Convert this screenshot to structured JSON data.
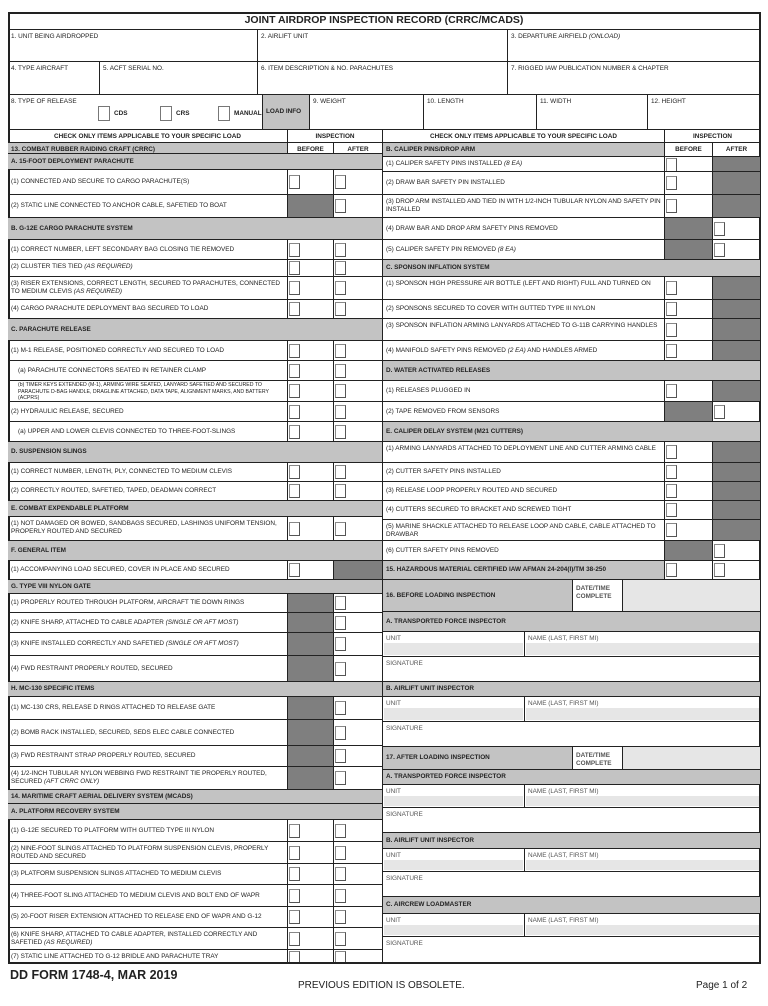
{
  "title": "JOINT AIRDROP INSPECTION RECORD (CRRC/MCADS)",
  "header_fields": {
    "f1": "1. UNIT BEING AIRDROPPED",
    "f2": "2. AIRLIFT UNIT",
    "f3": "3. DEPARTURE AIRFIELD",
    "f3_em": "(ONLOAD)",
    "f4": "4. TYPE AIRCRAFT",
    "f5": "5. ACFT SERIAL NO.",
    "f6": "6. ITEM DESCRIPTION & NO. PARACHUTES",
    "f7": "7. RIGGED IAW PUBLICATION NUMBER & CHAPTER",
    "f8": "8. TYPE OF RELEASE",
    "release_options": [
      "CDS",
      "CRS",
      "MANUAL"
    ],
    "load_info": "LOAD INFO",
    "f9": "9. WEIGHT",
    "f10": "10. LENGTH",
    "f11": "11. WIDTH",
    "f12": "12. HEIGHT"
  },
  "left_rows": [
    {
      "type": "colhead",
      "text": "CHECK ONLY ITEMS APPLICABLE TO YOUR SPECIFIC LOAD",
      "insp": "INSPECTION"
    },
    {
      "type": "sechead",
      "text": "13. COMBAT RUBBER RAIDING CRAFT (CRRC)",
      "before": "BEFORE",
      "after": "AFTER"
    },
    {
      "type": "head",
      "text": "A. 15-FOOT DEPLOYMENT PARACHUTE"
    },
    {
      "type": "item",
      "text": "(1) CONNECTED AND SECURE TO CARGO PARACHUTE(S)",
      "b": "box",
      "a": "box"
    },
    {
      "type": "item",
      "text": "(2) STATIC LINE CONNECTED TO ANCHOR CABLE, SAFETIED TO BOAT",
      "b": "shaded",
      "a": "box"
    },
    {
      "type": "head",
      "text": "B. G-12E CARGO PARACHUTE SYSTEM"
    },
    {
      "type": "item",
      "text": "(1) CORRECT NUMBER, LEFT SECONDARY BAG CLOSING TIE REMOVED",
      "b": "box",
      "a": "box"
    },
    {
      "type": "item",
      "text": "(2) CLUSTER TIES TIED ",
      "em": "(AS REQUIRED)",
      "b": "box",
      "a": "box"
    },
    {
      "type": "item",
      "text": "(3) RISER EXTENSIONS, CORRECT LENGTH, SECURED TO PARACHUTES, CONNECTED TO MEDIUM CLEVIS ",
      "em": "(AS REQUIRED)",
      "b": "box",
      "a": "box"
    },
    {
      "type": "item",
      "text": "(4) CARGO PARACHUTE DEPLOYMENT BAG SECURED TO LOAD",
      "b": "box",
      "a": "box"
    },
    {
      "type": "head",
      "text": "C. PARACHUTE RELEASE"
    },
    {
      "type": "item",
      "text": "(1) M-1 RELEASE, POSITIONED CORRECTLY AND SECURED  TO LOAD",
      "b": "box",
      "a": "box"
    },
    {
      "type": "item",
      "indent": true,
      "text": "(a) PARACHUTE CONNECTORS SEATED IN RETAINER CLAMP",
      "b": "box",
      "a": "box"
    },
    {
      "type": "item",
      "indent": true,
      "small": true,
      "text": "(b) TIMER KEYS EXTENDED (M-1), ARMING WIRE SEATED, LANYARD SAFETIED AND SECURED TO PARACHUTE D-BAG HANDLE, DRAGLINE ATTACHED, DATA TAPE, ALIGNMENT MARKS, AND BATTERY (ACPRS)",
      "b": "box",
      "a": "box"
    },
    {
      "type": "item",
      "text": "(2) HYDRAULIC RELEASE, SECURED",
      "b": "box",
      "a": "box"
    },
    {
      "type": "item",
      "indent": true,
      "text": "(a) UPPER AND LOWER CLEVIS CONNECTED TO THREE-FOOT-SLINGS",
      "b": "box",
      "a": "box"
    },
    {
      "type": "head",
      "text": "D. SUSPENSION SLINGS"
    },
    {
      "type": "item",
      "text": "(1) CORRECT NUMBER, LENGTH, PLY, CONNECTED TO MEDIUM CLEVIS",
      "b": "box",
      "a": "box"
    },
    {
      "type": "item",
      "text": "(2) CORRECTLY ROUTED, SAFETIED, TAPED, DEADMAN CORRECT",
      "b": "box",
      "a": "box"
    },
    {
      "type": "head",
      "text": "E. COMBAT EXPENDABLE PLATFORM"
    },
    {
      "type": "item",
      "text": "(1) NOT DAMAGED OR BOWED, SANDBAGS SECURED, LASHINGS UNIFORM TENSION, PROPERLY ROUTED AND SECURED",
      "b": "box",
      "a": "box"
    },
    {
      "type": "head",
      "text": "F. GENERAL ITEM"
    },
    {
      "type": "item",
      "text": "(1) ACCOMPANYING LOAD SECURED, COVER IN PLACE AND SECURED",
      "b": "box",
      "a": "shaded"
    },
    {
      "type": "head",
      "text": "G. TYPE VIII NYLON GATE"
    },
    {
      "type": "item",
      "text": "(1) PROPERLY ROUTED THROUGH PLATFORM, AIRCRAFT TIE DOWN RINGS",
      "b": "shaded",
      "a": "box"
    },
    {
      "type": "item",
      "text": "(2) KNIFE SHARP, ATTACHED TO CABLE ADAPTER ",
      "em": "(SINGLE OR AFT MOST)",
      "b": "shaded",
      "a": "box"
    },
    {
      "type": "item",
      "text": "(3) KNIFE INSTALLED CORRECTLY AND SAFETIED ",
      "em": "(SINGLE OR AFT MOST)",
      "b": "shaded",
      "a": "box"
    },
    {
      "type": "item",
      "text": "(4) FWD RESTRAINT PROPERLY ROUTED, SECURED",
      "b": "shaded",
      "a": "box"
    },
    {
      "type": "head",
      "text": "H. MC-130 SPECIFIC ITEMS"
    },
    {
      "type": "item",
      "text": "(1) MC-130 CRS, RELEASE D RINGS ATTACHED TO RELEASE GATE",
      "b": "shaded",
      "a": "box"
    },
    {
      "type": "item",
      "text": "(2) BOMB RACK INSTALLED, SECURED, SEDS ELEC CABLE CONNECTED",
      "b": "shaded",
      "a": "box"
    },
    {
      "type": "item",
      "text": "(3) FWD RESTRAINT STRAP PROPERLY ROUTED, SECURED",
      "b": "shaded",
      "a": "box"
    },
    {
      "type": "item",
      "text": "(4) 1/2-INCH TUBULAR NYLON WEBBING FWD RESTRAINT TIE PROPERLY ROUTED, SECURED ",
      "em": "(AFT CRRC ONLY)",
      "b": "shaded",
      "a": "box"
    },
    {
      "type": "head",
      "text": "14. MARITIME CRAFT AERIAL DELIVERY SYSTEM (MCADS)"
    },
    {
      "type": "head",
      "text": "A. PLATFORM RECOVERY SYSTEM"
    },
    {
      "type": "item",
      "text": "(1) G-12E SECURED TO PLATFORM WITH GUTTED TYPE III NYLON",
      "b": "box",
      "a": "box"
    },
    {
      "type": "item",
      "text": "(2) NINE-FOOT SLINGS ATTACHED TO PLATFORM SUSPENSION CLEVIS, PROPERLY ROUTED AND SECURED",
      "b": "box",
      "a": "box"
    },
    {
      "type": "item",
      "text": "(3) PLATFORM SUSPENSION SLINGS ATTACHED TO MEDIUM CLEVIS",
      "b": "box",
      "a": "box"
    },
    {
      "type": "item",
      "text": "(4) THREE-FOOT SLING ATTACHED TO MEDIUM CLEVIS AND BOLT END OF WAPR",
      "b": "box",
      "a": "box"
    },
    {
      "type": "item",
      "text": "(5) 20-FOOT RISER EXTENSION ATTACHED TO RELEASE END OF WAPR AND G-12",
      "b": "box",
      "a": "box"
    },
    {
      "type": "item",
      "text": "(6) KNIFE SHARP, ATTACHED TO CABLE ADAPTER, INSTALLED CORRECTLY AND SAFETIED ",
      "em": "(AS REQUIRED)",
      "b": "box",
      "a": "box"
    },
    {
      "type": "item",
      "text": "(7) STATIC LINE ATTACHED TO G-12 BRIDLE AND PARACHUTE TRAY",
      "b": "box",
      "a": "box"
    }
  ],
  "right_rows": [
    {
      "type": "colhead",
      "text": "CHECK ONLY ITEMS APPLICABLE TO YOUR SPECIFIC LOAD",
      "insp": "INSPECTION"
    },
    {
      "type": "sechead",
      "text": "B. CALIPER PINS/DROP ARM",
      "before": "BEFORE",
      "after": "AFTER"
    },
    {
      "type": "item",
      "text": "(1) CALIPER SAFETY PINS INSTALLED ",
      "em": "(8 EA)",
      "b": "box",
      "a": "shaded"
    },
    {
      "type": "item",
      "text": "(2) DRAW BAR SAFETY PIN INSTALLED",
      "b": "box",
      "a": "shaded"
    },
    {
      "type": "item",
      "text": "(3) DROP ARM INSTALLED AND TIED IN WITH 1/2-INCH TUBULAR NYLON AND SAFETY PIN INSTALLED",
      "b": "box",
      "a": "shaded"
    },
    {
      "type": "item",
      "text": "(4) DRAW BAR AND DROP ARM SAFETY PINS REMOVED",
      "b": "shaded",
      "a": "box"
    },
    {
      "type": "item",
      "text": "(5) CALIPER SAFETY PIN REMOVED ",
      "em": "(8 EA)",
      "b": "shaded",
      "a": "box"
    },
    {
      "type": "head",
      "text": "C. SPONSON INFLATION SYSTEM"
    },
    {
      "type": "item",
      "text": "(1) SPONSON HIGH PRESSURE AIR BOTTLE (LEFT AND RIGHT) FULL AND TURNED ON",
      "b": "box",
      "a": "shaded"
    },
    {
      "type": "item",
      "text": "(2) SPONSONS SECURED TO COVER WITH GUTTED TYPE III NYLON",
      "b": "box",
      "a": "shaded"
    },
    {
      "type": "item",
      "text": "(3) SPONSON INFLATION ARMING LANYARDS ATTACHED TO G-11B CARRYING HANDLES",
      "b": "box",
      "a": "shaded"
    },
    {
      "type": "item",
      "text": "(4) MANIFOLD SAFETY PINS REMOVED ",
      "em": "(2 EA)",
      "tail": " AND HANDLES ARMED",
      "b": "box",
      "a": "shaded"
    },
    {
      "type": "head",
      "text": "D. WATER ACTIVATED RELEASES"
    },
    {
      "type": "item",
      "text": "(1) RELEASES PLUGGED IN",
      "b": "box",
      "a": "shaded"
    },
    {
      "type": "item",
      "text": "(2) TAPE REMOVED FROM SENSORS",
      "b": "shaded",
      "a": "box"
    },
    {
      "type": "head",
      "text": "E. CALIPER DELAY SYSTEM (M21 CUTTERS)"
    },
    {
      "type": "item",
      "text": "(1) ARMING LANYARDS ATTACHED TO DEPLOYMENT LINE AND CUTTER ARMING CABLE",
      "b": "box",
      "a": "shaded"
    },
    {
      "type": "item",
      "text": "(2) CUTTER SAFETY PINS INSTALLED",
      "b": "box",
      "a": "shaded"
    },
    {
      "type": "item",
      "text": "(3) RELEASE LOOP PROPERLY ROUTED AND SECURED",
      "b": "box",
      "a": "shaded"
    },
    {
      "type": "item",
      "text": "(4) CUTTERS SECURED TO BRACKET AND SCREWED TIGHT",
      "b": "box",
      "a": "shaded"
    },
    {
      "type": "item",
      "text": "(5) MARINE SHACKLE ATTACHED TO RELEASE LOOP AND CABLE, CABLE ATTACHED TO DRAWBAR",
      "b": "box",
      "a": "shaded"
    },
    {
      "type": "item",
      "text": "(6) CUTTER SAFETY PINS REMOVED",
      "b": "shaded",
      "a": "box"
    },
    {
      "type": "itemhead",
      "text": "15. HAZARDOUS MATERIAL CERTIFIED IAW AFMAN 24-204(I)/TM 38-250",
      "b": "box",
      "a": "box"
    },
    {
      "type": "dt",
      "text": "16. BEFORE LOADING INSPECTION",
      "dt": "DATE/TIME COMPLETE"
    },
    {
      "type": "head",
      "text": "A. TRANSPORTED FORCE INSPECTOR"
    },
    {
      "type": "unitname",
      "unit": "UNIT",
      "name": "NAME (LAST, FIRST MI)"
    },
    {
      "type": "sig",
      "text": "SIGNATURE"
    },
    {
      "type": "head",
      "text": "B. AIRLIFT UNIT INSPECTOR"
    },
    {
      "type": "unitname",
      "unit": "UNIT",
      "name": "NAME (LAST, FIRST MI)"
    },
    {
      "type": "sig",
      "text": "SIGNATURE"
    },
    {
      "type": "dt",
      "text": "17. AFTER LOADING INSPECTION",
      "dt": "DATE/TIME COMPLETE"
    },
    {
      "type": "head",
      "text": "A. TRANSPORTED FORCE INSPECTOR"
    },
    {
      "type": "unitname",
      "unit": "UNIT",
      "name": "NAME (LAST, FIRST MI)"
    },
    {
      "type": "sig",
      "text": "SIGNATURE"
    },
    {
      "type": "head",
      "text": "B. AIRLIFT UNIT INSPECTOR"
    },
    {
      "type": "unitname",
      "unit": "UNIT",
      "name": "NAME (LAST, FIRST MI)"
    },
    {
      "type": "sig",
      "text": "SIGNATURE"
    },
    {
      "type": "head",
      "text": "C. AIRCREW LOADMASTER"
    },
    {
      "type": "unitname",
      "unit": "UNIT",
      "name": "NAME (LAST, FIRST MI)"
    },
    {
      "type": "sig",
      "text": "SIGNATURE"
    }
  ],
  "footer": {
    "form_id": "DD FORM 1748-4, MAR 2019",
    "edition_note": "PREVIOUS EDITION IS OBSOLETE.",
    "page": "Page 1 of 2"
  },
  "colors": {
    "header_gray": "#c3c3c3",
    "shaded_cell": "#7f7f7f",
    "input_fill": "#e6e6e6"
  }
}
